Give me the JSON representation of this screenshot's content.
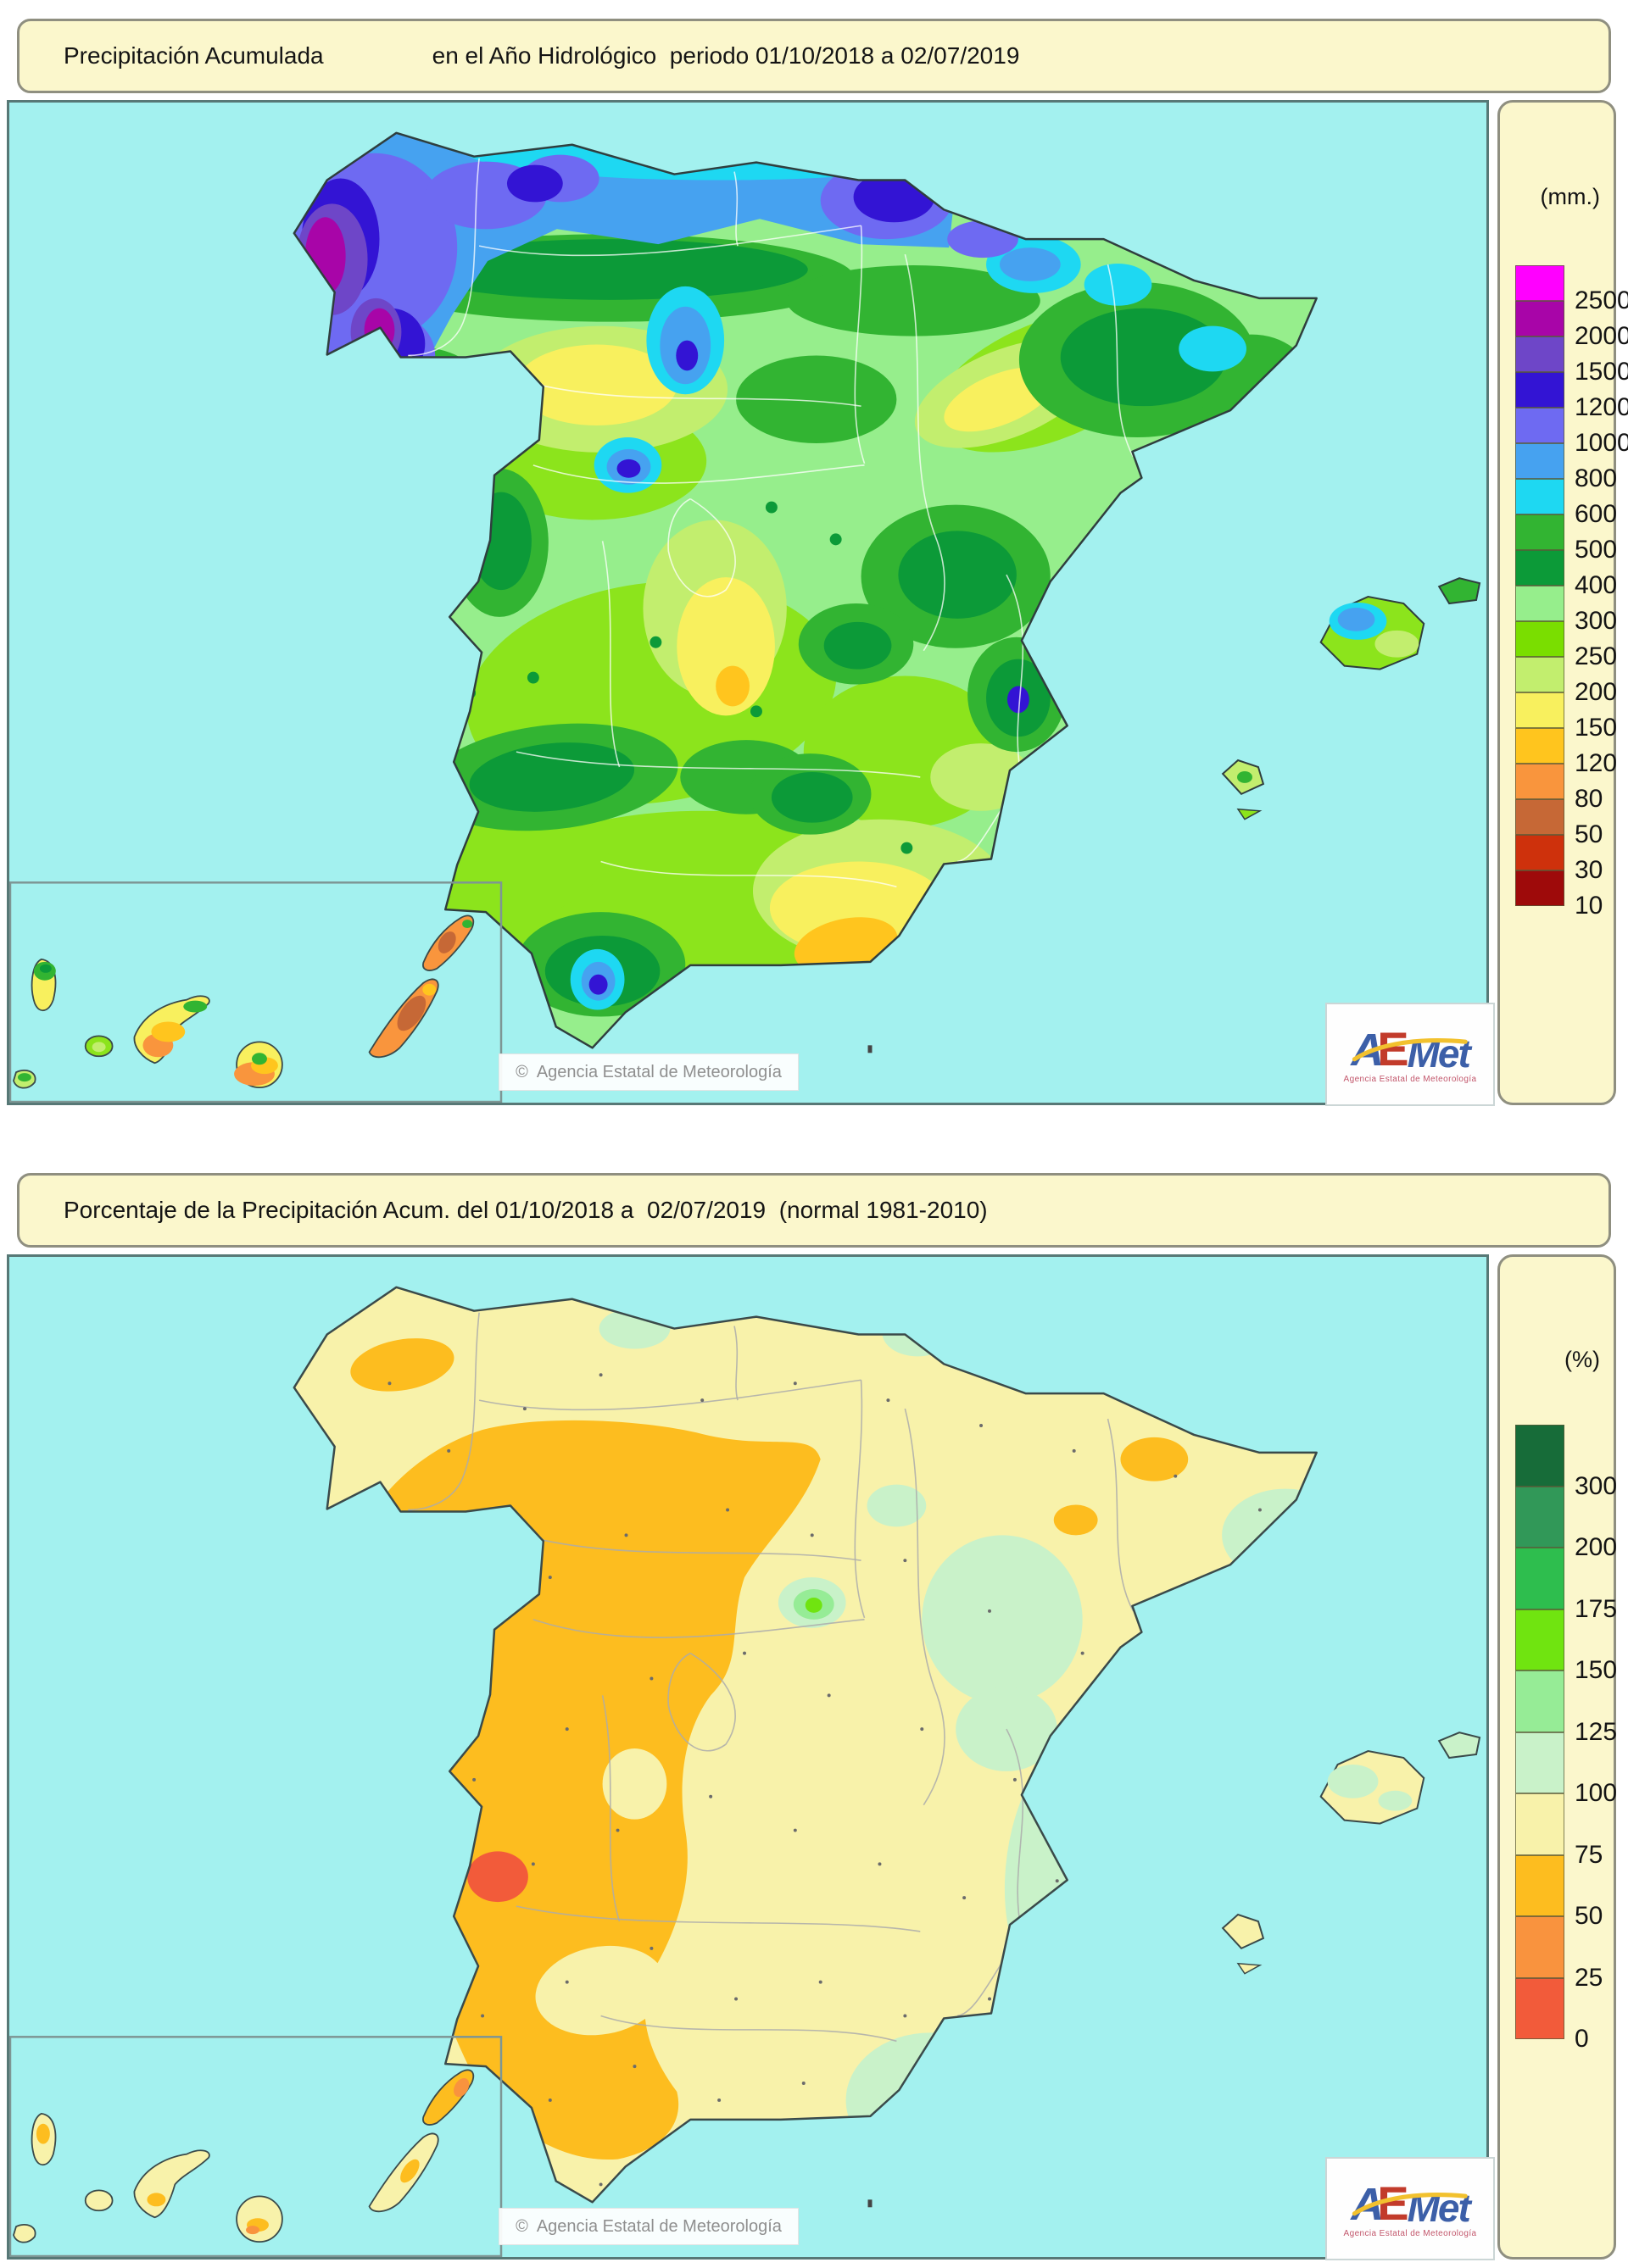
{
  "panels": [
    {
      "name": "precipitacion-acumulada",
      "title": {
        "left": "Precipitación Acumulada",
        "right": "en el Año Hidrológico  periodo 01/10/2018 a 02/07/2019"
      },
      "legend": {
        "unit": "(mm.)",
        "cells": [
          "#FF00FF",
          "#A805A8",
          "#6E46C8",
          "#3314D4",
          "#6E6AF2",
          "#46A2F0",
          "#1ED8F2",
          "#32B432",
          "#0C9A38",
          "#96EE8C",
          "#7ADE00",
          "#C2EE6E",
          "#F8F05E",
          "#FFC51E",
          "#F9953D",
          "#C66836",
          "#CE310C",
          "#9E0A0A"
        ],
        "labels": [
          "2500",
          "2000",
          "1500",
          "1200",
          "1000",
          "800",
          "600",
          "500",
          "400",
          "300",
          "250",
          "200",
          "150",
          "120",
          "80",
          "50",
          "30",
          "10"
        ]
      },
      "watermark": "©  Agencia Estatal de Meteorología",
      "logo": {
        "part_a": "A",
        "part_e": "E",
        "part_met": "Met",
        "subtitle": "Agencia Estatal de Meteorología"
      }
    },
    {
      "name": "porcentaje-precipitacion",
      "title": {
        "left": "Porcentaje de la Precipitación Acum. del 01/10/2018 a  02/07/2019  (normal 1981-2010)",
        "right": ""
      },
      "legend": {
        "unit": "(%)",
        "cells": [
          "#176C39",
          "#319858",
          "#2EBE4E",
          "#70E410",
          "#96EC96",
          "#C9F2C9",
          "#F8F2AA",
          "#FDBD1F",
          "#F9933E",
          "#F25B3A"
        ],
        "labels": [
          "300",
          "200",
          "175",
          "150",
          "125",
          "100",
          "75",
          "50",
          "25",
          "0"
        ]
      },
      "watermark": "©  Agencia Estatal de Meteorología",
      "logo": {
        "part_a": "A",
        "part_e": "E",
        "part_met": "Met",
        "subtitle": "Agencia Estatal de Meteorología"
      }
    }
  ],
  "chart_data": [
    {
      "type": "heatmap",
      "title": "Precipitación Acumulada en el Año Hidrológico periodo 01/10/2018 a 02/07/2019",
      "unit": "mm.",
      "legend_position": "right",
      "scale_labels_top_to_bottom": [
        2500,
        2000,
        1500,
        1200,
        1000,
        800,
        600,
        500,
        400,
        300,
        250,
        200,
        150,
        120,
        80,
        50,
        30,
        10
      ],
      "scale_colors_top_to_bottom": [
        "#FF00FF",
        "#A805A8",
        "#6E46C8",
        "#3314D4",
        "#6E6AF2",
        "#46A2F0",
        "#1ED8F2",
        "#32B432",
        "#0C9A38",
        "#96EE8C",
        "#7ADE00",
        "#C2EE6E",
        "#F8F05E",
        "#FFC51E",
        "#F9953D",
        "#C66836",
        "#CE310C",
        "#9E0A0A"
      ]
    },
    {
      "type": "heatmap",
      "title": "Porcentaje de la Precipitación Acum. del 01/10/2018 a 02/07/2019 (normal 1981-2010)",
      "unit": "%",
      "legend_position": "right",
      "scale_labels_top_to_bottom": [
        300,
        200,
        175,
        150,
        125,
        100,
        75,
        50,
        25,
        0
      ],
      "scale_colors_top_to_bottom": [
        "#176C39",
        "#319858",
        "#2EBE4E",
        "#70E410",
        "#96EC96",
        "#C9F2C9",
        "#F8F2AA",
        "#FDBD1F",
        "#F9933E",
        "#F25B3A"
      ]
    }
  ]
}
